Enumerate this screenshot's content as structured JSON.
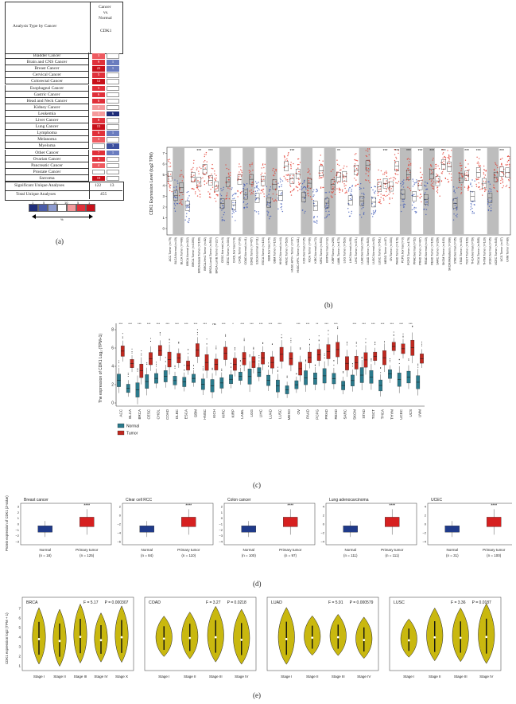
{
  "panel_a": {
    "header_left": "Analysis Type by Cancer",
    "header_col": [
      "Cancer",
      "vs.",
      "Normal"
    ],
    "gene": "CDK1",
    "rows": [
      {
        "name": "Bladder Cancer",
        "up": "3",
        "down": ""
      },
      {
        "name": "Brain and CNS Cancer",
        "up": "9",
        "down": "1"
      },
      {
        "name": "Breast Cancer",
        "up": "22",
        "down": "1"
      },
      {
        "name": "Cervical Cancer",
        "up": "5",
        "down": ""
      },
      {
        "name": "Colorectal Cancer",
        "up": "12",
        "down": ""
      },
      {
        "name": "Esophageal Cancer",
        "up": "5",
        "down": ""
      },
      {
        "name": "Gastric Cancer",
        "up": "6",
        "down": ""
      },
      {
        "name": "Head and Neck Cancer",
        "up": "6",
        "down": ""
      },
      {
        "name": "Kidney Cancer",
        "up": "2",
        "down": ""
      },
      {
        "name": "Leukemia",
        "up": "1",
        "down": "6"
      },
      {
        "name": "Liver Cancer",
        "up": "8",
        "down": ""
      },
      {
        "name": "Lung Cancer",
        "up": "15",
        "down": ""
      },
      {
        "name": "Lymphoma",
        "up": "6",
        "down": "1"
      },
      {
        "name": "Melanoma",
        "up": "3",
        "down": ""
      },
      {
        "name": "Myeloma",
        "up": "",
        "down": "3"
      },
      {
        "name": "Other Cancer",
        "up": "7",
        "down": "1"
      },
      {
        "name": "Ovarian Cancer",
        "up": "6",
        "down": ""
      },
      {
        "name": "Pancreatic Cancer",
        "up": "4",
        "down": ""
      },
      {
        "name": "Prostate Cancer",
        "up": "",
        "down": ""
      },
      {
        "name": "Sarcoma",
        "up": "10",
        "down": ""
      }
    ],
    "significant_label": "Significant Unique Analyses",
    "significant_up": "122",
    "significant_down": "13",
    "total_label": "Total Unique Analyses",
    "total_value": "455",
    "legend_ticks": [
      "1",
      "5",
      "10",
      "10",
      "5",
      "1"
    ],
    "legend_pct": "%",
    "colors": {
      "up": "#d7191c",
      "down": "#2c3e8f"
    }
  },
  "panel_b": {
    "ylabel": "CDK1 Expression Level (log2 TPM)",
    "yticks": [
      "0",
      "1",
      "2",
      "3",
      "4",
      "5",
      "6",
      "7"
    ],
    "sig_marks": [
      "***",
      "***",
      "***",
      "**",
      "***",
      "***",
      "***",
      "***",
      "***",
      "***",
      "***",
      "***",
      "***",
      "***",
      "***",
      "***",
      "***",
      "***",
      "***",
      "***",
      "**",
      "***",
      "***",
      "**",
      "***",
      "***",
      "***",
      "*",
      "***"
    ],
    "xlabels": [
      "ACC.Tumor (n=79)",
      "BLCA.Normal (n=19)",
      "BLCA.Tumor (n=408)",
      "BRCA.Normal (n=112)",
      "BRCA.Tumor (n=1093)",
      "BRCA-Basal.Tumor (n=190)",
      "BRCA-Her2.Tumor (n=82)",
      "BRCA-LumA.Tumor (n=564)",
      "BRCA-LumB.Tumor (n=217)",
      "CESC.Normal (n=3)",
      "CESC.Tumor (n=304)",
      "CHOL.Normal (n=9)",
      "CHOL.Tumor (n=36)",
      "COAD.Normal (n=41)",
      "COAD.Tumor (n=457)",
      "ESCA.Normal (n=11)",
      "ESCA.Tumor (n=184)",
      "GBM.Normal (n=5)",
      "GBM.Tumor (n=153)",
      "HNSC.Normal (n=44)",
      "HNSC.Tumor (n=520)",
      "HNSC-HPV+.Tumor (n=97)",
      "HNSC-HPV-.Tumor (n=421)",
      "KICH.Normal (n=25)",
      "KICH.Tumor (n=66)",
      "KIRC.Normal (n=72)",
      "KIRC.Tumor (n=533)",
      "KIRP.Normal (n=32)",
      "KIRP.Tumor (n=290)",
      "LAML.Tumor (n=173)",
      "LGG.Tumor (n=516)",
      "LIHC.Normal (n=50)",
      "LIHC.Tumor (n=371)",
      "LUAD.Normal (n=59)",
      "LUAD.Tumor (n=515)",
      "LUSC.Normal (n=52)",
      "LUSC.Tumor (n=501)",
      "MESO.Tumor (n=87)",
      "OV.Tumor (n=303)",
      "PAAD.Tumor (n=178)",
      "PCPG.Normal (n=3)",
      "PCPG.Tumor (n=179)",
      "PRAD.Normal (n=52)",
      "PRAD.Tumor (n=497)",
      "READ.Normal (n=10)",
      "READ.Tumor (n=166)",
      "SARC.Tumor (n=259)",
      "SKCM.Tumor (n=103)",
      "SKCM.Metastasis (n=368)",
      "STAD.Normal (n=35)",
      "STAD.Tumor (n=415)",
      "TGCT.Tumor (n=150)",
      "THCA.Normal (n=59)",
      "THCA.Tumor (n=505)",
      "THYM.Tumor (n=120)",
      "UCEC.Normal (n=35)",
      "UCEC.Tumor (n=545)",
      "UCS.Tumor (n=57)",
      "UVM.Tumor (n=80)"
    ]
  },
  "panel_c": {
    "ylabel": "The expression of CDK1 Log₂ (TPM+1)",
    "yticks": [
      "0",
      "2",
      "4",
      "6",
      "8"
    ],
    "categories": [
      "ACC",
      "BLCA",
      "BRCA",
      "CESC",
      "CHOL",
      "COAD",
      "DLBC",
      "ESCA",
      "GBM",
      "HNSC",
      "KICH",
      "KIRC",
      "KIRP",
      "LAML",
      "LGG",
      "LIHC",
      "LUAD",
      "LUSC",
      "MESO",
      "OV",
      "PAAD",
      "PCPG",
      "PRAD",
      "READ",
      "SARC",
      "SKCM",
      "STAD",
      "TGCT",
      "THCA",
      "THYM",
      "UCEC",
      "UCS",
      "UVM"
    ],
    "sig": [
      "***",
      "***",
      "***",
      "***",
      "***",
      "***",
      "***",
      "***",
      "***",
      "***",
      "ns",
      "***",
      "*",
      "***",
      "***",
      "***",
      "***",
      "***",
      "",
      "***",
      "***",
      "**",
      "***",
      "***",
      "",
      "***",
      "***",
      "***",
      "***",
      "***",
      "***",
      "***",
      ""
    ],
    "legend": [
      "Normal",
      "Tumor"
    ],
    "colors": {
      "normal": "#2a7a8c",
      "tumor": "#c0281f"
    }
  },
  "panel_d": {
    "ylabel": "Protein expression of CDK1 (Z-value)",
    "plots": [
      {
        "title": "Breast cancer",
        "n_normal": "(n = 18)",
        "n_tumor": "(n = 125)",
        "yticks": [
          "3",
          "2",
          "1",
          "0",
          "−1",
          "−2",
          "−3"
        ]
      },
      {
        "title": "Clear cell RCC",
        "n_normal": "(n = 84)",
        "n_tumor": "(n = 110)",
        "yticks": [
          "2",
          "0",
          "−2",
          "−4",
          "−6"
        ]
      },
      {
        "title": "Colon cancer",
        "n_normal": "(n = 100)",
        "n_tumor": "(n = 97)",
        "yticks": [
          "2",
          "1",
          "0",
          "−1",
          "−2",
          "−3",
          "−4"
        ]
      },
      {
        "title": "Lung adenocarcinoma",
        "n_normal": "(n = 111)",
        "n_tumor": "(n = 111)",
        "yticks": [
          "4",
          "2",
          "0",
          "−2",
          "−4"
        ]
      },
      {
        "title": "UCEC",
        "n_normal": "(n = 31)",
        "n_tumor": "(n = 100)",
        "yticks": [
          "4",
          "2",
          "0",
          "−2",
          "−4"
        ]
      }
    ],
    "x_normal": "Normal",
    "x_tumor": "Primary tumor",
    "sig": "****",
    "colors": {
      "normal": "#1f3a8a",
      "tumor": "#d62020"
    }
  },
  "panel_e": {
    "ylabel": "CDK1 expression log2 (TPM + 1)",
    "plots": [
      {
        "title": "BRCA",
        "f": "F = 5.17",
        "p": "P = 0.000307",
        "stages": [
          "Stage I",
          "Stage II",
          "Stage III",
          "Stage IV",
          "Stage X"
        ]
      },
      {
        "title": "COAD",
        "f": "F = 3.27",
        "p": "P = 0.0218",
        "stages": [
          "Stage I",
          "Stage II",
          "Stage III",
          "Stage IV"
        ]
      },
      {
        "title": "LUAD",
        "f": "F = 5.91",
        "p": "P = 0.000579",
        "stages": [
          "Stage I",
          "Stage II",
          "Stage III",
          "Stage IV"
        ]
      },
      {
        "title": "LUSC",
        "f": "F = 3.36",
        "p": "P = 0.0187",
        "stages": [
          "Stage I",
          "Stage II",
          "Stage III",
          "Stage IV"
        ]
      }
    ],
    "yticks_left": [
      "7",
      "6",
      "5",
      "4",
      "3",
      "2",
      "1"
    ],
    "colors": {
      "violin": "#c9b80f",
      "outline": "#222"
    }
  },
  "labels": {
    "a": "(a)",
    "b": "(b)",
    "c": "(c)",
    "d": "(d)",
    "e": "(e)"
  }
}
